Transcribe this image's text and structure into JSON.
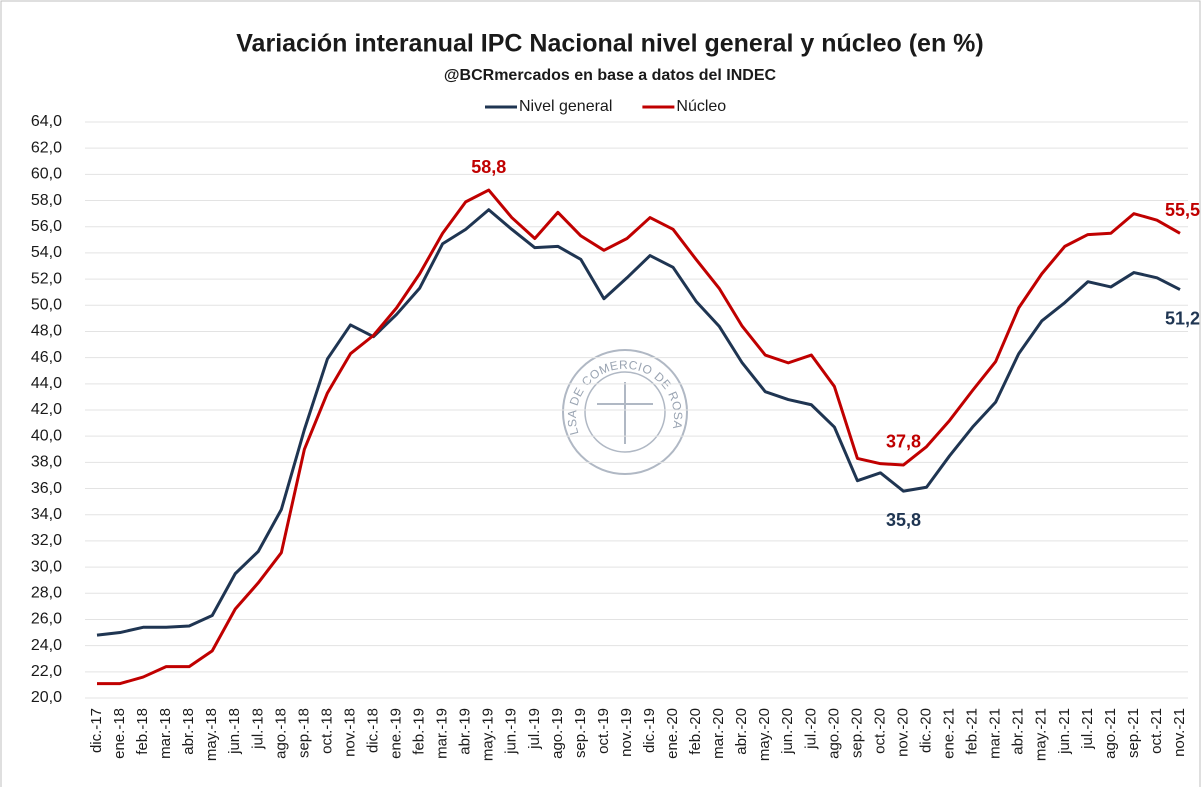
{
  "chart_data": {
    "type": "line",
    "title": "Variación interanual IPC Nacional nivel general y núcleo (en %)",
    "subtitle": "@BCRmercados en base a datos del INDEC",
    "watermark": "BOLSA DE COMERCIO DE ROSARIO",
    "categories": [
      "dic.-17",
      "ene.-18",
      "feb.-18",
      "mar.-18",
      "abr.-18",
      "may.-18",
      "jun.-18",
      "jul.-18",
      "ago.-18",
      "sep.-18",
      "oct.-18",
      "nov.-18",
      "dic.-18",
      "ene.-19",
      "feb.-19",
      "mar.-19",
      "abr.-19",
      "may.-19",
      "jun.-19",
      "jul.-19",
      "ago.-19",
      "sep.-19",
      "oct.-19",
      "nov.-19",
      "dic.-19",
      "ene.-20",
      "feb.-20",
      "mar.-20",
      "abr.-20",
      "may.-20",
      "jun.-20",
      "jul.-20",
      "ago.-20",
      "sep.-20",
      "oct.-20",
      "nov.-20",
      "dic.-20",
      "ene.-21",
      "feb.-21",
      "mar.-21",
      "abr.-21",
      "may.-21",
      "jun.-21",
      "jul.-21",
      "ago.-21",
      "sep.-21",
      "oct.-21",
      "nov.-21"
    ],
    "series": [
      {
        "name": "Nivel general",
        "color": "#1f3552",
        "values": [
          24.8,
          25.0,
          25.4,
          25.4,
          25.5,
          26.3,
          29.5,
          31.2,
          34.4,
          40.5,
          45.9,
          48.5,
          47.6,
          49.3,
          51.3,
          54.7,
          55.8,
          57.3,
          55.8,
          54.4,
          54.5,
          53.5,
          50.5,
          52.1,
          53.8,
          52.9,
          50.3,
          48.4,
          45.6,
          43.4,
          42.8,
          42.4,
          40.7,
          36.6,
          37.2,
          35.8,
          36.1,
          38.5,
          40.7,
          42.6,
          46.3,
          48.8,
          50.2,
          51.8,
          51.4,
          52.5,
          52.1,
          51.2
        ],
        "value_labels": [
          null,
          null,
          null,
          null,
          null,
          null,
          null,
          null,
          null,
          null,
          null,
          null,
          null,
          null,
          null,
          null,
          null,
          null,
          null,
          null,
          null,
          null,
          null,
          null,
          null,
          null,
          null,
          null,
          null,
          null,
          null,
          null,
          null,
          null,
          null,
          "35,8",
          null,
          null,
          null,
          null,
          null,
          null,
          null,
          null,
          null,
          null,
          null,
          "51,2"
        ]
      },
      {
        "name": "Núcleo",
        "color": "#c00000",
        "values": [
          21.1,
          21.1,
          21.6,
          22.4,
          22.4,
          23.6,
          26.8,
          28.8,
          31.1,
          39.0,
          43.3,
          46.3,
          47.7,
          49.8,
          52.4,
          55.5,
          57.9,
          58.8,
          56.7,
          55.1,
          57.1,
          55.3,
          54.2,
          55.1,
          56.7,
          55.8,
          53.5,
          51.3,
          48.4,
          46.2,
          45.6,
          46.2,
          43.8,
          38.3,
          37.9,
          37.8,
          39.2,
          41.2,
          43.5,
          45.7,
          49.8,
          52.4,
          54.5,
          55.4,
          55.5,
          57.0,
          56.5,
          55.5
        ],
        "value_labels": [
          null,
          null,
          null,
          null,
          null,
          null,
          null,
          null,
          null,
          null,
          null,
          null,
          null,
          null,
          null,
          null,
          null,
          "58,8",
          null,
          null,
          null,
          null,
          null,
          null,
          null,
          null,
          null,
          null,
          null,
          null,
          null,
          null,
          null,
          null,
          null,
          "37,8",
          null,
          null,
          null,
          null,
          null,
          null,
          null,
          null,
          null,
          null,
          null,
          "55,5"
        ]
      }
    ],
    "ylim": [
      20,
      64
    ],
    "yticks": [
      {
        "value": 20,
        "label": "20,0"
      },
      {
        "value": 22,
        "label": "22,0"
      },
      {
        "value": 24,
        "label": "24,0"
      },
      {
        "value": 26,
        "label": "26,0"
      },
      {
        "value": 28,
        "label": "28,0"
      },
      {
        "value": 30,
        "label": "30,0"
      },
      {
        "value": 32,
        "label": "32,0"
      },
      {
        "value": 34,
        "label": "34,0"
      },
      {
        "value": 36,
        "label": "36,0"
      },
      {
        "value": 38,
        "label": "38,0"
      },
      {
        "value": 40,
        "label": "40,0"
      },
      {
        "value": 42,
        "label": "42,0"
      },
      {
        "value": 44,
        "label": "44,0"
      },
      {
        "value": 46,
        "label": "46,0"
      },
      {
        "value": 48,
        "label": "48,0"
      },
      {
        "value": 50,
        "label": "50,0"
      },
      {
        "value": 52,
        "label": "52,0"
      },
      {
        "value": 54,
        "label": "54,0"
      },
      {
        "value": 56,
        "label": "56,0"
      },
      {
        "value": 58,
        "label": "58,0"
      },
      {
        "value": 60,
        "label": "60,0"
      },
      {
        "value": 62,
        "label": "62,0"
      },
      {
        "value": 64,
        "label": "64,0"
      }
    ],
    "grid": true,
    "legend": "top"
  }
}
